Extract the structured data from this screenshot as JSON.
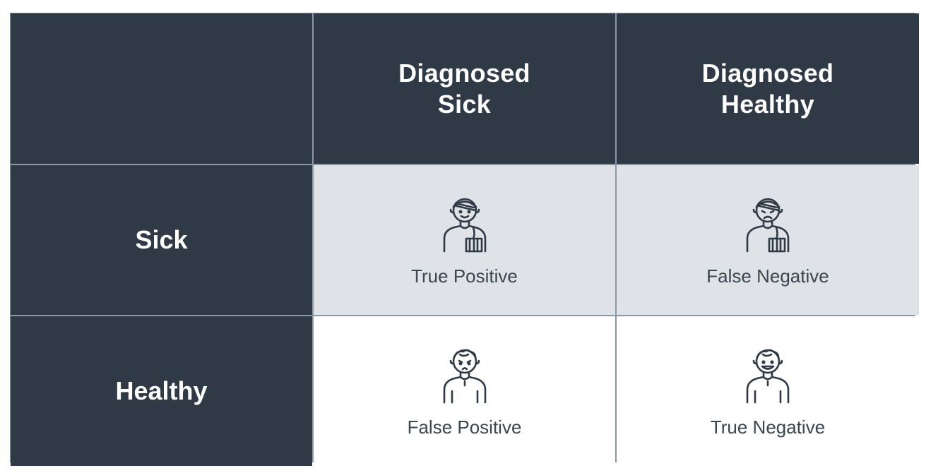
{
  "header": {
    "col1": "Diagnosed\nSick",
    "col2": "Diagnosed\nHealthy"
  },
  "rows": {
    "row1": "Sick",
    "row2": "Healthy"
  },
  "cells": {
    "tp": {
      "label": "True Positive",
      "icon": "sick-patient-smile-icon"
    },
    "fn": {
      "label": "False Negative",
      "icon": "sick-patient-sad-icon"
    },
    "fp": {
      "label": "False Positive",
      "icon": "healthy-person-worried-icon"
    },
    "tn": {
      "label": "True Negative",
      "icon": "healthy-person-happy-icon"
    }
  },
  "colors": {
    "dark": "#2f3a46",
    "light": "#dfe3e8",
    "border": "#8a98a6",
    "icon": "#2f3a46"
  }
}
